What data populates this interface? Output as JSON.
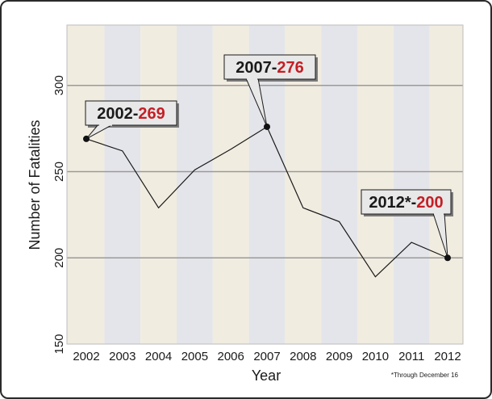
{
  "chart_data": {
    "type": "line",
    "title": "",
    "xlabel": "Year",
    "ylabel": "Number of Fatalities",
    "footnote": "*Through December 16",
    "x": [
      "2002",
      "2003",
      "2004",
      "2005",
      "2006",
      "2007",
      "2008",
      "2009",
      "2010",
      "2011",
      "2012"
    ],
    "values": [
      269,
      262,
      229,
      251,
      263,
      276,
      229,
      221,
      189,
      209,
      200
    ],
    "ylim": [
      150,
      335
    ],
    "yticks": [
      "150",
      "200",
      "250",
      "300"
    ],
    "grid": true,
    "band_colors": [
      "#f1ece0",
      "#e4e5ea"
    ],
    "line_color": "#1a1a1a",
    "accent_color": "#c41e24",
    "callouts": [
      {
        "year_label": "2002",
        "sep": "-",
        "value_label": "269"
      },
      {
        "year_label": "2007",
        "sep": "-",
        "value_label": "276"
      },
      {
        "year_label": "2012*",
        "sep": "-",
        "value_label": "200"
      }
    ]
  }
}
